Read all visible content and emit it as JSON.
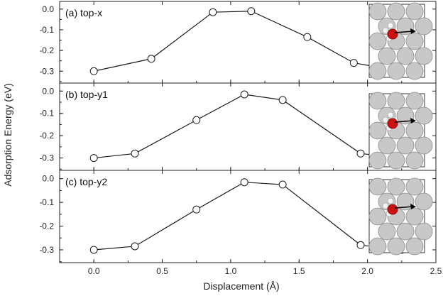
{
  "chart_data": {
    "type": "line",
    "ylabel": "Adsorption Energy (eV)",
    "xlabel": "Displacement (Å)",
    "xlim": [
      -0.25,
      2.5
    ],
    "xticks": [
      0.0,
      0.5,
      1.0,
      1.5,
      2.0,
      2.5
    ],
    "xtick_labels": [
      "0.0",
      "0.5",
      "1.0",
      "1.5",
      "2.0",
      "2.5"
    ],
    "ylim": [
      -0.33,
      0.02
    ],
    "yticks": [
      0.0,
      -0.1,
      -0.2,
      -0.3
    ],
    "ytick_labels": [
      "0.0",
      "-0.1",
      "-0.2",
      "-0.3"
    ],
    "marker": "open-circle",
    "panels": [
      {
        "label": "(a) top-x",
        "x": [
          0.0,
          0.42,
          0.87,
          1.15,
          1.56,
          1.9,
          2.25
        ],
        "y": [
          -0.3,
          -0.24,
          -0.015,
          -0.01,
          -0.135,
          -0.26,
          -0.3
        ]
      },
      {
        "label": "(b) top-y1",
        "x": [
          0.0,
          0.3,
          0.75,
          1.1,
          1.38,
          1.95,
          2.25
        ],
        "y": [
          -0.3,
          -0.28,
          -0.13,
          -0.015,
          -0.04,
          -0.28,
          -0.3
        ]
      },
      {
        "label": "(c) top-y2",
        "x": [
          0.0,
          0.3,
          0.75,
          1.1,
          1.38,
          1.95,
          2.25
        ],
        "y": [
          -0.3,
          -0.285,
          -0.13,
          -0.015,
          -0.025,
          -0.28,
          -0.3
        ]
      }
    ]
  },
  "colors": {
    "line": "#1a1a1a",
    "marker_fill": "#ffffff",
    "atom": "#c8c8c8",
    "adsorbate": "#cc1111",
    "h_atom": "#f4f4f4"
  }
}
